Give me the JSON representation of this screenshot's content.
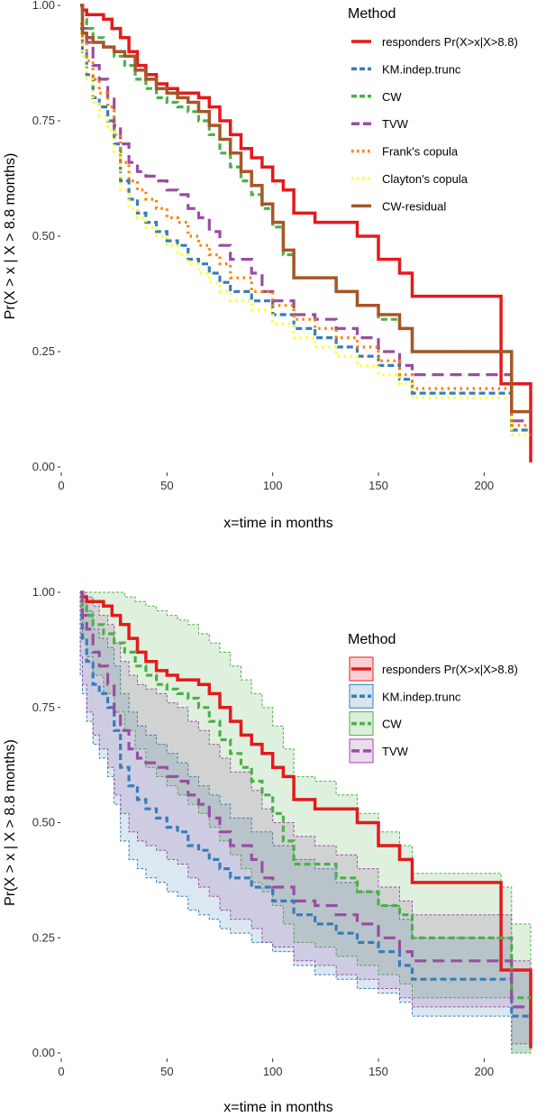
{
  "chart_data": [
    {
      "type": "line",
      "step": true,
      "xlabel": "x=time in months",
      "ylabel": "Pr(X > x | X > 8.8 months)",
      "xlim": [
        0,
        225
      ],
      "ylim": [
        0,
        1
      ],
      "xticks": [
        "0",
        "50",
        "100",
        "150",
        "200"
      ],
      "yticks": [
        "0.00",
        "0.25",
        "0.50",
        "0.75",
        "1.00"
      ],
      "grid": false,
      "legend": {
        "title": "Method",
        "position": "top-right",
        "entries": [
          "responders Pr(X>x|X>8.8)",
          "KM.indep.trunc",
          "CW",
          "TVW",
          "Frank's copula",
          "Clayton's copula",
          "CW-residual"
        ]
      },
      "series": [
        {
          "name": "responders Pr(X>x|X>8.8)",
          "color": "#e41a1c",
          "dash": "solid",
          "x": [
            9,
            10,
            12,
            15,
            20,
            24,
            28,
            32,
            36,
            40,
            45,
            50,
            55,
            60,
            65,
            70,
            75,
            80,
            85,
            90,
            95,
            100,
            105,
            110,
            120,
            130,
            140,
            150,
            160,
            166,
            175,
            185,
            195,
            208,
            213,
            222
          ],
          "y": [
            1.0,
            0.99,
            0.98,
            0.98,
            0.97,
            0.95,
            0.93,
            0.9,
            0.87,
            0.85,
            0.83,
            0.82,
            0.81,
            0.81,
            0.8,
            0.78,
            0.75,
            0.72,
            0.69,
            0.67,
            0.65,
            0.62,
            0.6,
            0.55,
            0.53,
            0.53,
            0.5,
            0.45,
            0.42,
            0.37,
            0.37,
            0.37,
            0.37,
            0.18,
            0.18,
            0.01
          ]
        },
        {
          "name": "KM.indep.trunc",
          "color": "#377eb8",
          "dash": "dashed",
          "x": [
            9,
            10,
            12,
            15,
            18,
            22,
            25,
            28,
            32,
            36,
            40,
            45,
            50,
            55,
            60,
            65,
            70,
            75,
            80,
            90,
            100,
            110,
            120,
            130,
            140,
            150,
            160,
            166,
            175,
            190,
            208,
            213,
            222
          ],
          "y": [
            0.95,
            0.9,
            0.85,
            0.8,
            0.78,
            0.75,
            0.7,
            0.62,
            0.58,
            0.55,
            0.53,
            0.51,
            0.49,
            0.48,
            0.45,
            0.44,
            0.42,
            0.4,
            0.38,
            0.36,
            0.33,
            0.3,
            0.28,
            0.26,
            0.24,
            0.22,
            0.19,
            0.16,
            0.16,
            0.16,
            0.16,
            0.08,
            0.08
          ]
        },
        {
          "name": "CW",
          "color": "#4daf4a",
          "dash": "dashed",
          "x": [
            9,
            10,
            12,
            15,
            20,
            25,
            30,
            35,
            40,
            45,
            50,
            55,
            60,
            65,
            70,
            75,
            80,
            85,
            90,
            95,
            100,
            105,
            110,
            120,
            130,
            140,
            150,
            160,
            166,
            175,
            190,
            208,
            213,
            222
          ],
          "y": [
            1.0,
            0.97,
            0.95,
            0.93,
            0.91,
            0.89,
            0.87,
            0.84,
            0.82,
            0.8,
            0.79,
            0.78,
            0.77,
            0.75,
            0.72,
            0.68,
            0.65,
            0.62,
            0.59,
            0.56,
            0.52,
            0.46,
            0.41,
            0.41,
            0.38,
            0.35,
            0.32,
            0.3,
            0.25,
            0.25,
            0.25,
            0.25,
            0.12,
            0.12
          ]
        },
        {
          "name": "TVW",
          "color": "#984ea3",
          "dash": "longdash",
          "x": [
            9,
            10,
            12,
            15,
            18,
            22,
            25,
            28,
            32,
            36,
            40,
            45,
            50,
            55,
            60,
            65,
            70,
            75,
            80,
            90,
            95,
            100,
            110,
            120,
            130,
            140,
            150,
            160,
            166,
            175,
            190,
            208,
            213,
            222
          ],
          "y": [
            1.0,
            0.95,
            0.92,
            0.87,
            0.84,
            0.8,
            0.74,
            0.7,
            0.66,
            0.64,
            0.63,
            0.62,
            0.6,
            0.59,
            0.56,
            0.54,
            0.51,
            0.48,
            0.45,
            0.42,
            0.38,
            0.36,
            0.33,
            0.32,
            0.3,
            0.28,
            0.25,
            0.22,
            0.2,
            0.2,
            0.2,
            0.2,
            0.1,
            0.1
          ]
        },
        {
          "name": "Frank's copula",
          "color": "#ff7f00",
          "dash": "dotted",
          "x": [
            9,
            10,
            12,
            15,
            18,
            22,
            25,
            28,
            32,
            36,
            40,
            45,
            50,
            55,
            60,
            65,
            70,
            75,
            80,
            90,
            100,
            110,
            120,
            130,
            140,
            150,
            160,
            166,
            175,
            190,
            208,
            213,
            222
          ],
          "y": [
            0.96,
            0.92,
            0.88,
            0.84,
            0.81,
            0.78,
            0.72,
            0.66,
            0.62,
            0.6,
            0.58,
            0.56,
            0.54,
            0.53,
            0.5,
            0.48,
            0.46,
            0.44,
            0.41,
            0.38,
            0.35,
            0.32,
            0.3,
            0.28,
            0.26,
            0.23,
            0.2,
            0.17,
            0.17,
            0.17,
            0.17,
            0.09,
            0.09
          ]
        },
        {
          "name": "Clayton's copula",
          "color": "#ffff33",
          "dash": "dotted",
          "x": [
            9,
            10,
            12,
            15,
            18,
            22,
            25,
            28,
            32,
            36,
            40,
            45,
            50,
            55,
            60,
            65,
            70,
            75,
            80,
            90,
            100,
            110,
            120,
            130,
            140,
            150,
            160,
            166,
            175,
            190,
            208,
            213,
            222
          ],
          "y": [
            0.94,
            0.89,
            0.84,
            0.79,
            0.76,
            0.73,
            0.68,
            0.6,
            0.56,
            0.54,
            0.52,
            0.5,
            0.48,
            0.46,
            0.44,
            0.42,
            0.4,
            0.38,
            0.36,
            0.34,
            0.31,
            0.28,
            0.26,
            0.24,
            0.22,
            0.2,
            0.18,
            0.15,
            0.15,
            0.15,
            0.15,
            0.07,
            0.07
          ]
        },
        {
          "name": "CW-residual",
          "color": "#a65628",
          "dash": "solid",
          "x": [
            9,
            10,
            12,
            15,
            20,
            25,
            30,
            35,
            40,
            45,
            50,
            55,
            60,
            65,
            70,
            75,
            80,
            85,
            90,
            95,
            100,
            105,
            110,
            120,
            130,
            140,
            150,
            160,
            166,
            175,
            190,
            208,
            213,
            222
          ],
          "y": [
            1.0,
            0.94,
            0.93,
            0.92,
            0.91,
            0.9,
            0.89,
            0.86,
            0.84,
            0.82,
            0.81,
            0.8,
            0.79,
            0.77,
            0.74,
            0.71,
            0.68,
            0.64,
            0.61,
            0.57,
            0.53,
            0.47,
            0.41,
            0.41,
            0.38,
            0.35,
            0.33,
            0.3,
            0.25,
            0.25,
            0.25,
            0.25,
            0.12,
            0.12
          ]
        }
      ]
    },
    {
      "type": "line",
      "step": true,
      "confidence_bands": true,
      "xlabel": "x=time in months",
      "ylabel": "Pr(X > x | X > 8.8 months)",
      "xlim": [
        0,
        225
      ],
      "ylim": [
        0,
        1
      ],
      "xticks": [
        "0",
        "50",
        "100",
        "150",
        "200"
      ],
      "yticks": [
        "0.00",
        "0.25",
        "0.50",
        "0.75",
        "1.00"
      ],
      "grid": false,
      "legend": {
        "title": "Method",
        "position": "right",
        "entries": [
          "responders Pr(X>x|X>8.8)",
          "KM.indep.trunc",
          "CW",
          "TVW"
        ]
      },
      "series": [
        {
          "name": "responders Pr(X>x|X>8.8)",
          "color": "#e41a1c",
          "dash": "solid",
          "x": [
            9,
            10,
            12,
            15,
            20,
            24,
            28,
            32,
            36,
            40,
            45,
            50,
            55,
            60,
            65,
            70,
            75,
            80,
            85,
            90,
            95,
            100,
            105,
            110,
            120,
            130,
            140,
            150,
            160,
            166,
            175,
            185,
            195,
            208,
            213,
            222
          ],
          "y": [
            1.0,
            0.99,
            0.98,
            0.98,
            0.97,
            0.95,
            0.93,
            0.9,
            0.87,
            0.85,
            0.83,
            0.82,
            0.81,
            0.81,
            0.8,
            0.78,
            0.75,
            0.72,
            0.69,
            0.67,
            0.65,
            0.62,
            0.6,
            0.55,
            0.53,
            0.53,
            0.5,
            0.45,
            0.42,
            0.37,
            0.37,
            0.37,
            0.37,
            0.18,
            0.18,
            0.01
          ]
        },
        {
          "name": "KM.indep.trunc",
          "color": "#377eb8",
          "dash": "dashed",
          "x": [
            9,
            10,
            12,
            15,
            18,
            22,
            25,
            28,
            32,
            36,
            40,
            45,
            50,
            55,
            60,
            65,
            70,
            75,
            80,
            90,
            100,
            110,
            120,
            130,
            140,
            150,
            160,
            166,
            175,
            190,
            208,
            213,
            222
          ],
          "y": [
            0.95,
            0.9,
            0.85,
            0.8,
            0.78,
            0.75,
            0.7,
            0.62,
            0.58,
            0.55,
            0.53,
            0.51,
            0.49,
            0.48,
            0.45,
            0.44,
            0.42,
            0.4,
            0.38,
            0.36,
            0.33,
            0.3,
            0.28,
            0.26,
            0.24,
            0.22,
            0.19,
            0.16,
            0.16,
            0.16,
            0.16,
            0.08,
            0.08
          ],
          "lower": [
            0.82,
            0.78,
            0.72,
            0.67,
            0.64,
            0.6,
            0.54,
            0.46,
            0.42,
            0.4,
            0.38,
            0.37,
            0.35,
            0.34,
            0.31,
            0.3,
            0.29,
            0.27,
            0.26,
            0.24,
            0.22,
            0.19,
            0.17,
            0.16,
            0.14,
            0.13,
            0.11,
            0.08,
            0.08,
            0.08,
            0.08,
            0.0,
            0.0
          ],
          "upper": [
            1.0,
            0.98,
            0.96,
            0.92,
            0.9,
            0.88,
            0.84,
            0.78,
            0.74,
            0.71,
            0.69,
            0.67,
            0.65,
            0.63,
            0.6,
            0.58,
            0.56,
            0.54,
            0.51,
            0.48,
            0.45,
            0.42,
            0.4,
            0.37,
            0.35,
            0.32,
            0.29,
            0.25,
            0.25,
            0.25,
            0.25,
            0.18,
            0.18
          ]
        },
        {
          "name": "CW",
          "color": "#4daf4a",
          "dash": "dashed",
          "x": [
            9,
            10,
            12,
            15,
            20,
            25,
            30,
            35,
            40,
            45,
            50,
            55,
            60,
            65,
            70,
            75,
            80,
            85,
            90,
            95,
            100,
            105,
            110,
            120,
            130,
            140,
            150,
            160,
            166,
            175,
            190,
            208,
            213,
            222
          ],
          "y": [
            1.0,
            0.97,
            0.95,
            0.93,
            0.91,
            0.89,
            0.87,
            0.84,
            0.82,
            0.8,
            0.79,
            0.78,
            0.77,
            0.75,
            0.72,
            0.68,
            0.65,
            0.62,
            0.59,
            0.56,
            0.52,
            0.46,
            0.41,
            0.41,
            0.38,
            0.35,
            0.32,
            0.3,
            0.25,
            0.25,
            0.25,
            0.25,
            0.12,
            0.12
          ],
          "lower": [
            0.94,
            0.9,
            0.86,
            0.82,
            0.78,
            0.74,
            0.7,
            0.66,
            0.62,
            0.6,
            0.58,
            0.56,
            0.54,
            0.52,
            0.49,
            0.46,
            0.43,
            0.4,
            0.37,
            0.35,
            0.32,
            0.28,
            0.24,
            0.23,
            0.21,
            0.19,
            0.17,
            0.15,
            0.12,
            0.12,
            0.12,
            0.12,
            0.0,
            0.0
          ],
          "upper": [
            1.0,
            1.0,
            1.0,
            1.0,
            1.0,
            1.0,
            0.99,
            0.98,
            0.97,
            0.96,
            0.95,
            0.94,
            0.93,
            0.91,
            0.89,
            0.87,
            0.84,
            0.81,
            0.78,
            0.75,
            0.71,
            0.66,
            0.6,
            0.59,
            0.56,
            0.52,
            0.48,
            0.45,
            0.39,
            0.39,
            0.39,
            0.36,
            0.28,
            0.28
          ]
        },
        {
          "name": "TVW",
          "color": "#984ea3",
          "dash": "longdash",
          "x": [
            9,
            10,
            12,
            15,
            18,
            22,
            25,
            28,
            32,
            36,
            40,
            45,
            50,
            55,
            60,
            65,
            70,
            75,
            80,
            90,
            95,
            100,
            110,
            120,
            130,
            140,
            150,
            160,
            166,
            175,
            190,
            208,
            213,
            222
          ],
          "y": [
            1.0,
            0.95,
            0.92,
            0.87,
            0.84,
            0.8,
            0.74,
            0.7,
            0.66,
            0.64,
            0.63,
            0.62,
            0.6,
            0.59,
            0.56,
            0.54,
            0.51,
            0.48,
            0.45,
            0.42,
            0.38,
            0.36,
            0.33,
            0.32,
            0.3,
            0.28,
            0.25,
            0.22,
            0.2,
            0.2,
            0.2,
            0.2,
            0.1,
            0.1
          ],
          "lower": [
            0.86,
            0.8,
            0.74,
            0.69,
            0.66,
            0.62,
            0.56,
            0.52,
            0.48,
            0.46,
            0.45,
            0.44,
            0.42,
            0.41,
            0.38,
            0.36,
            0.34,
            0.31,
            0.29,
            0.27,
            0.24,
            0.23,
            0.2,
            0.19,
            0.17,
            0.16,
            0.14,
            0.12,
            0.1,
            0.1,
            0.1,
            0.1,
            0.02,
            0.02
          ],
          "upper": [
            1.0,
            1.0,
            0.99,
            0.97,
            0.95,
            0.93,
            0.89,
            0.85,
            0.82,
            0.8,
            0.79,
            0.78,
            0.76,
            0.75,
            0.72,
            0.7,
            0.67,
            0.64,
            0.61,
            0.57,
            0.53,
            0.5,
            0.47,
            0.45,
            0.43,
            0.4,
            0.36,
            0.33,
            0.3,
            0.3,
            0.3,
            0.3,
            0.2,
            0.2
          ]
        }
      ]
    }
  ]
}
